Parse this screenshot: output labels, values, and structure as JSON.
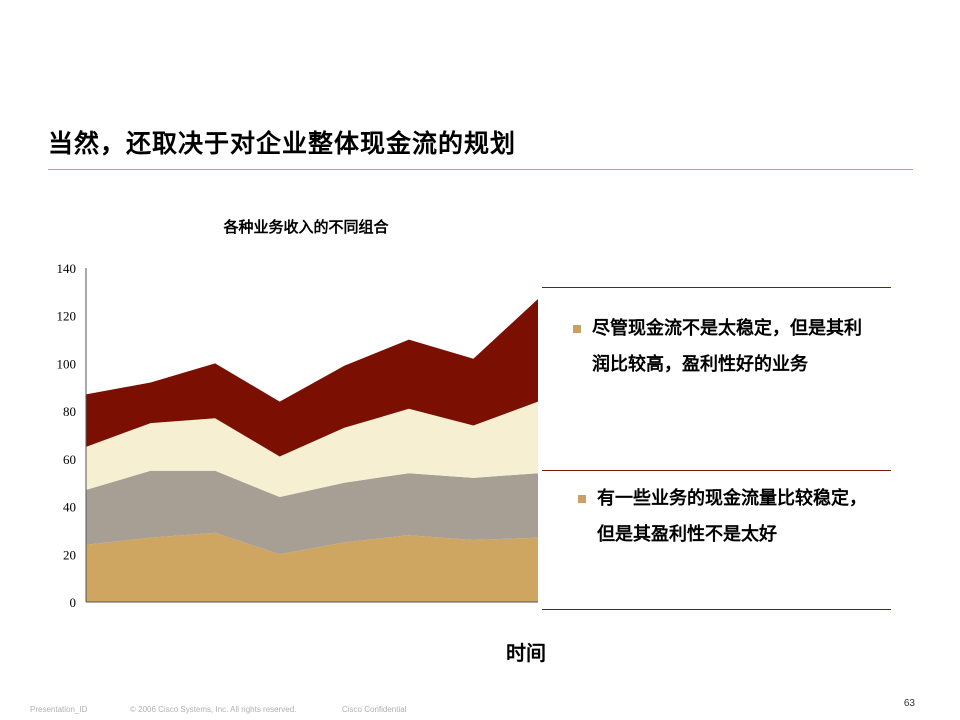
{
  "slide": {
    "title": "当然，还取决于对企业整体现金流的规划",
    "page_number": "63",
    "footer": {
      "presentation_id": "Presentation_ID",
      "copyright": "© 2006 Cisco Systems, Inc. All rights reserved.",
      "confidential": "Cisco Confidential"
    }
  },
  "callouts": [
    {
      "text": "尽管现金流不是太稳定，但是其利润比较高，盈利性好的业务"
    },
    {
      "text": "有一些业务的现金流量比较稳定，但是其盈利性不是太好"
    }
  ],
  "colors": {
    "accent_rule": "#b8a57a",
    "callout_rule": "#7a1a0e",
    "bullet": "#c9a263"
  },
  "chart_data": {
    "type": "area",
    "stacked": true,
    "title": "各种业务收入的不同组合",
    "xlabel": "时间",
    "ylabel": "",
    "ylim": [
      0,
      140
    ],
    "yticks": [
      0,
      20,
      40,
      60,
      80,
      100,
      120,
      140
    ],
    "x": [
      1,
      2,
      3,
      4,
      5,
      6,
      7,
      8
    ],
    "grid": false,
    "legend": "none",
    "series": [
      {
        "color": "#cea662",
        "values": [
          24,
          27,
          29,
          20,
          25,
          28,
          26,
          27
        ]
      },
      {
        "color": "#a79e94",
        "values": [
          23,
          28,
          26,
          24,
          25,
          26,
          26,
          27
        ]
      },
      {
        "color": "#f6efd2",
        "values": [
          18,
          20,
          22,
          17,
          23,
          27,
          22,
          30
        ]
      },
      {
        "color": "#7a0f02",
        "values": [
          22,
          17,
          23,
          23,
          26,
          29,
          28,
          43
        ]
      }
    ]
  }
}
